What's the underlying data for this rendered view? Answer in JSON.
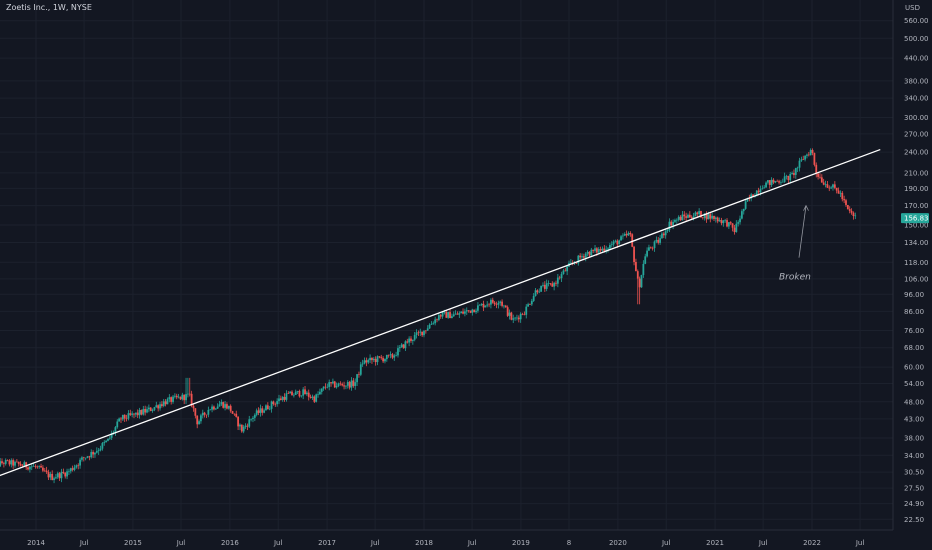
{
  "header": {
    "symbol_title": "Zoetis Inc., 1W, NYSE"
  },
  "colors": {
    "background": "#131722",
    "grid": "#1c212d",
    "up": "#26a69a",
    "down": "#ef5350",
    "text": "#b2b5be",
    "trendline": "#ffffff",
    "price_tag": "#26a69a"
  },
  "chart_data": {
    "type": "candlestick",
    "title": "Zoetis Inc., 1W, NYSE",
    "currency": "USD",
    "y_scale": "log",
    "ylim": [
      21,
      640
    ],
    "grid": true,
    "y_ticks": [
      560,
      500,
      440,
      380,
      340,
      300,
      270,
      240,
      210,
      190,
      170,
      150,
      134,
      118,
      106,
      96,
      86,
      76,
      68,
      60,
      54,
      48,
      43,
      38,
      34,
      30.5,
      27.5,
      24.9,
      22.5
    ],
    "x_ticks": [
      {
        "label": "2014",
        "date": "2014-01-01"
      },
      {
        "label": "Jul",
        "date": "2014-07-01"
      },
      {
        "label": "2015",
        "date": "2015-01-01"
      },
      {
        "label": "Jul",
        "date": "2015-07-01"
      },
      {
        "label": "2016",
        "date": "2016-01-01"
      },
      {
        "label": "Jul",
        "date": "2016-07-01"
      },
      {
        "label": "2017",
        "date": "2017-01-01"
      },
      {
        "label": "Jul",
        "date": "2017-07-01"
      },
      {
        "label": "2018",
        "date": "2018-01-01"
      },
      {
        "label": "Jul",
        "date": "2018-07-01"
      },
      {
        "label": "2019",
        "date": "2019-01-01"
      },
      {
        "label": "8",
        "date": "2019-07-01"
      },
      {
        "label": "2020",
        "date": "2020-01-01"
      },
      {
        "label": "Jul",
        "date": "2020-07-01"
      },
      {
        "label": "2021",
        "date": "2021-01-01"
      },
      {
        "label": "Jul",
        "date": "2021-07-01"
      },
      {
        "label": "2022",
        "date": "2022-01-01"
      },
      {
        "label": "Jul",
        "date": "2022-07-01"
      }
    ],
    "last_price": "156.83",
    "price_path": [
      [
        "2013-07-01",
        31
      ],
      [
        "2013-09-01",
        32.5
      ],
      [
        "2013-11-01",
        32
      ],
      [
        "2014-01-01",
        31.5
      ],
      [
        "2014-03-01",
        29.5
      ],
      [
        "2014-05-01",
        30.5
      ],
      [
        "2014-07-01",
        33.5
      ],
      [
        "2014-08-15",
        35
      ],
      [
        "2014-10-01",
        37.5
      ],
      [
        "2014-11-15",
        43
      ],
      [
        "2015-01-01",
        44
      ],
      [
        "2015-03-01",
        45.5
      ],
      [
        "2015-05-01",
        48
      ],
      [
        "2015-06-15",
        49
      ],
      [
        "2015-08-01",
        50
      ],
      [
        "2015-09-01",
        42
      ],
      [
        "2015-10-15",
        46
      ],
      [
        "2015-12-01",
        47.5
      ],
      [
        "2016-01-01",
        46
      ],
      [
        "2016-02-15",
        40
      ],
      [
        "2016-04-01",
        44
      ],
      [
        "2016-06-01",
        47
      ],
      [
        "2016-08-01",
        50
      ],
      [
        "2016-10-01",
        51
      ],
      [
        "2016-11-15",
        49
      ],
      [
        "2017-01-01",
        53.5
      ],
      [
        "2017-03-01",
        53.5
      ],
      [
        "2017-04-15",
        54
      ],
      [
        "2017-05-15",
        62
      ],
      [
        "2017-07-01",
        63
      ],
      [
        "2017-09-01",
        64
      ],
      [
        "2017-11-01",
        71
      ],
      [
        "2018-01-01",
        76
      ],
      [
        "2018-03-01",
        84
      ],
      [
        "2018-05-01",
        84
      ],
      [
        "2018-07-01",
        87
      ],
      [
        "2018-09-01",
        91
      ],
      [
        "2018-10-15",
        92
      ],
      [
        "2018-12-01",
        81
      ],
      [
        "2019-01-15",
        86
      ],
      [
        "2019-03-01",
        99
      ],
      [
        "2019-05-01",
        102
      ],
      [
        "2019-07-01",
        115
      ],
      [
        "2019-09-01",
        125
      ],
      [
        "2019-11-01",
        128
      ],
      [
        "2020-01-01",
        135
      ],
      [
        "2020-02-15",
        142
      ],
      [
        "2020-03-20",
        100
      ],
      [
        "2020-04-15",
        126
      ],
      [
        "2020-06-01",
        135
      ],
      [
        "2020-07-15",
        152
      ],
      [
        "2020-09-01",
        158
      ],
      [
        "2020-11-01",
        161
      ],
      [
        "2021-01-01",
        157
      ],
      [
        "2021-02-15",
        152
      ],
      [
        "2021-03-15",
        145
      ],
      [
        "2021-05-01",
        175
      ],
      [
        "2021-07-01",
        195
      ],
      [
        "2021-09-01",
        200
      ],
      [
        "2021-10-15",
        205
      ],
      [
        "2021-12-01",
        232
      ],
      [
        "2021-12-31",
        244
      ],
      [
        "2022-01-15",
        212
      ],
      [
        "2022-02-15",
        197
      ],
      [
        "2022-03-15",
        192
      ],
      [
        "2022-04-15",
        185
      ],
      [
        "2022-05-15",
        165
      ],
      [
        "2022-06-15",
        157
      ]
    ],
    "trendline": {
      "start": {
        "date": "2013-06-01",
        "price": 28.4
      },
      "end": {
        "date": "2022-09-15",
        "price": 244
      }
    },
    "annotations": [
      {
        "text": "Broken",
        "arrow_to": {
          "date": "2022-01-01",
          "price": 170
        }
      }
    ]
  },
  "axis": {
    "currency_label": "USD"
  }
}
